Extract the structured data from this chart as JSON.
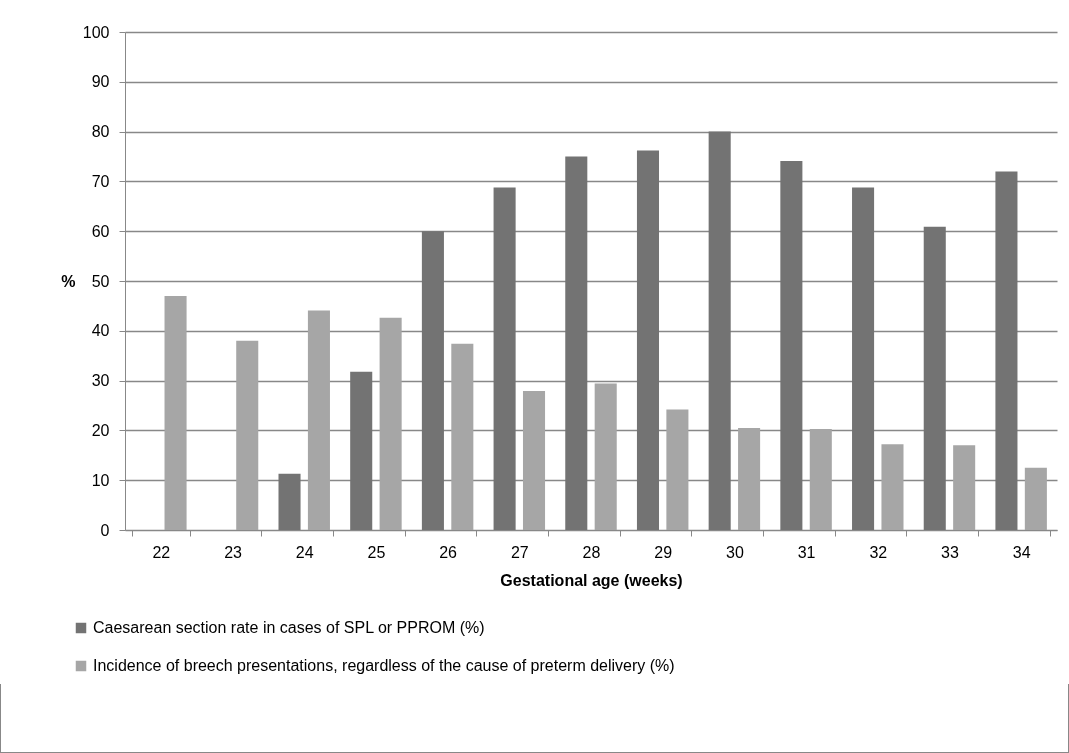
{
  "chart_data": {
    "type": "bar",
    "xlabel": "Gestational  age (weeks)",
    "ylabel": "%",
    "categories": [
      "22",
      "23",
      "24",
      "25",
      "26",
      "27",
      "28",
      "29",
      "30",
      "31",
      "32",
      "33",
      "34"
    ],
    "series": [
      {
        "name": "Caesarean section rate in cases of SPL or PPROM (%)",
        "color": "#737373",
        "values": [
          null,
          null,
          11.3,
          31.8,
          60,
          68.8,
          75,
          76.2,
          80,
          74.1,
          68.8,
          60.9,
          72
        ]
      },
      {
        "name": "Incidence of breech presentations, regardless of the cause of preterm delivery (%)",
        "color": "#a6a6a6",
        "values": [
          47,
          38,
          44.1,
          42.6,
          37.4,
          27.9,
          29.4,
          24.2,
          20.5,
          20.3,
          17.2,
          17,
          12.5
        ]
      }
    ],
    "ylim": [
      0,
      100
    ],
    "yticks": [
      0,
      10,
      20,
      30,
      40,
      50,
      60,
      70,
      80,
      90,
      100
    ],
    "grid": "y",
    "legend": "bottom left"
  }
}
